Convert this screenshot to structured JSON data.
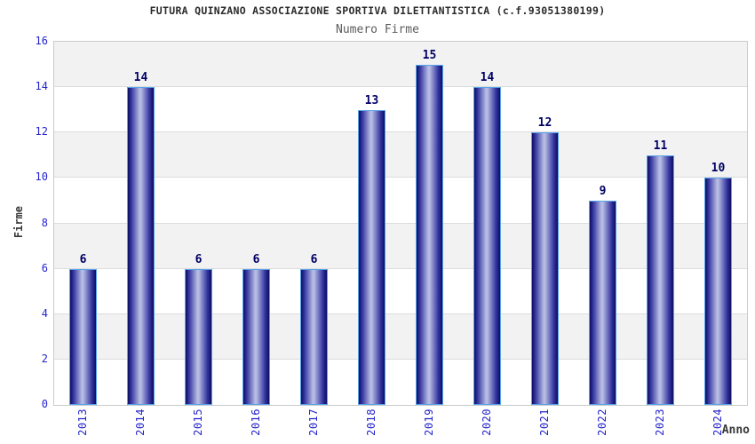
{
  "chart_data": {
    "type": "bar",
    "title": "FUTURA QUINZANO ASSOCIAZIONE SPORTIVA DILETTANTISTICA (c.f.93051380199)",
    "subtitle": "Numero Firme",
    "xlabel": "Anno",
    "ylabel": "Firme",
    "categories": [
      "2013",
      "2014",
      "2015",
      "2016",
      "2017",
      "2018",
      "2019",
      "2020",
      "2021",
      "2022",
      "2023",
      "2024"
    ],
    "values": [
      6,
      14,
      6,
      6,
      6,
      13,
      15,
      14,
      12,
      9,
      11,
      10
    ],
    "ylim": [
      0,
      16
    ],
    "yticks": [
      0,
      2,
      4,
      6,
      8,
      10,
      12,
      14,
      16
    ],
    "value_labels_shown": true,
    "grid": "horizontal-bands",
    "legend": "none",
    "colors": {
      "bar_edge_dark": "#0d0d60",
      "bar_mid": "#32329e",
      "bar_center_light": "#b7bde4",
      "bar_border": "#58a4e8",
      "tick_label": "#2424cc",
      "value_label": "#000066",
      "title": "#2b2b2b",
      "subtitle": "#5c5c5c",
      "axis_title": "#383838",
      "band_alt": "#f2f2f2",
      "band_base": "#ffffff",
      "grid_line": "#dcdcdc",
      "plot_border": "#cbcbcb",
      "background": "#ffffff"
    }
  }
}
